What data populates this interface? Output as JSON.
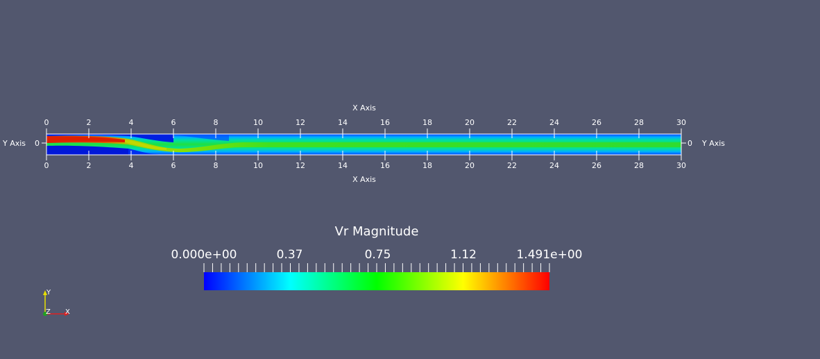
{
  "render_view": {
    "plot": {
      "x_axis_label_top": "X Axis",
      "x_axis_label_bottom": "X Axis",
      "y_axis_label_left": "Y Axis",
      "y_axis_label_right": "Y Axis",
      "x_ticks": [
        "0",
        "2",
        "4",
        "6",
        "8",
        "10",
        "12",
        "14",
        "16",
        "18",
        "20",
        "22",
        "24",
        "26",
        "28",
        "30"
      ],
      "x_tick_values": [
        0,
        2,
        4,
        6,
        8,
        10,
        12,
        14,
        16,
        18,
        20,
        22,
        24,
        26,
        28,
        30
      ],
      "x_range": [
        0,
        30
      ],
      "y_tick_left": "0",
      "y_tick_right": "0"
    },
    "scalar_bar": {
      "title": "Vr Magnitude",
      "labels": [
        "0.000e+00",
        "0.37",
        "0.75",
        "1.12",
        "1.491e+00"
      ],
      "label_values": [
        0,
        0.37,
        0.75,
        1.12,
        1.491
      ],
      "range": [
        0,
        1.491
      ],
      "minor_tick_count": 41,
      "colors": [
        "#0000ff",
        "#00ffff",
        "#00ff00",
        "#ffff00",
        "#ff0000"
      ]
    },
    "orientation_axes": {
      "y_label": "Y",
      "z_label": "Z",
      "x_label": "X",
      "y_color": "#e8e000",
      "x_color": "#e02020",
      "z_color": "#20a020"
    },
    "background_color": "#52576e"
  }
}
